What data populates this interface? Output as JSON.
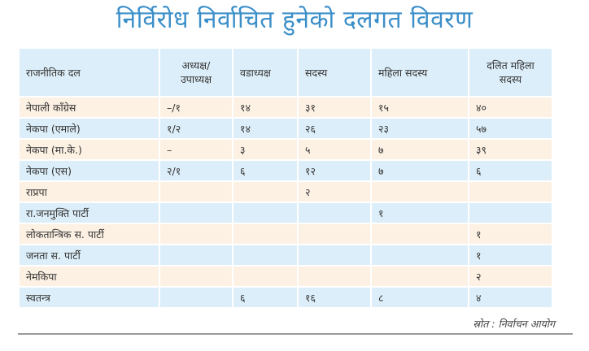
{
  "title": "निर्विरोध निर्वाचित हुनेको दलगत विवरण",
  "table": {
    "headers": [
      "राजनीतिक दल",
      "अध्यक्ष/ उपाध्यक्ष",
      "वडाध्यक्ष",
      "सदस्य",
      "महिला सदस्य",
      "दलित महिला सदस्य"
    ],
    "rows": [
      [
        "नेपाली काँग्रेस",
        "–/१",
        "१४",
        "३१",
        "१५",
        "४०"
      ],
      [
        "नेकपा (एमाले)",
        "१/२",
        "१४",
        "२६",
        "२३",
        "५७"
      ],
      [
        "नेकपा (मा.के.)",
        "–",
        "३",
        "५",
        "७",
        "३९"
      ],
      [
        "नेकपा (एस)",
        "२/१",
        "६",
        "१२",
        "७",
        "६"
      ],
      [
        "राप्रपा",
        "",
        "",
        "२",
        "",
        ""
      ],
      [
        "रा.जनमुक्ति पार्टी",
        "",
        "",
        "",
        "१",
        ""
      ],
      [
        "लोकतान्त्रिक स. पार्टी",
        "",
        "",
        "",
        "",
        "१"
      ],
      [
        "जनता स. पार्टी",
        "",
        "",
        "",
        "",
        "१"
      ],
      [
        "नेमकिपा",
        "",
        "",
        "",
        "",
        "२"
      ],
      [
        "स्वतन्त्र",
        "",
        "६",
        "१६",
        "८",
        "४"
      ]
    ]
  },
  "source": "स्रोत : निर्वाचन आयोग",
  "colors": {
    "title": "#3b8fc9",
    "row_odd": "#fdf1e4",
    "row_even": "#dceef9",
    "header": "#dceef9"
  }
}
